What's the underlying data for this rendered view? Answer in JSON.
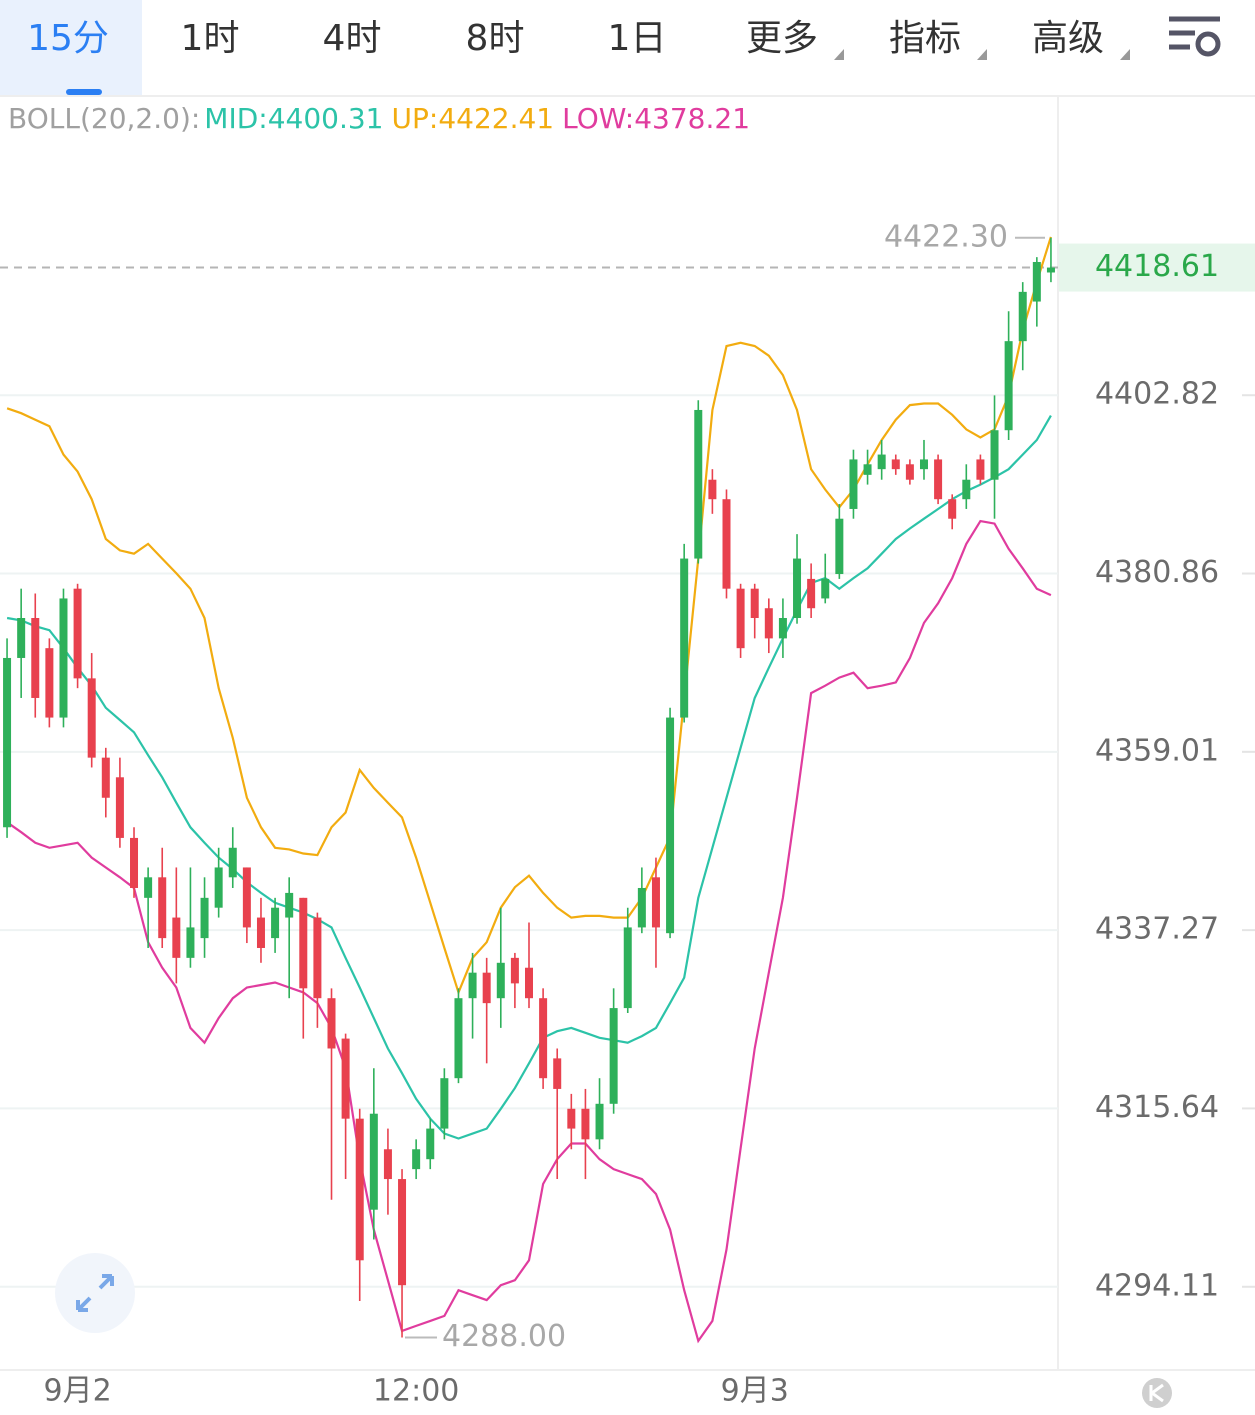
{
  "tabs": [
    "15分",
    "1时",
    "4时",
    "8时",
    "1日",
    "更多",
    "指标",
    "高级"
  ],
  "chart_data": {
    "type": "candlestick",
    "indicator": "BOLL(20,2.0):",
    "categories": [
      null,
      null,
      null,
      null,
      null,
      "9月2",
      null,
      null,
      null,
      null,
      null,
      null,
      null,
      null,
      null,
      null,
      null,
      null,
      null,
      null,
      null,
      null,
      null,
      null,
      null,
      null,
      null,
      null,
      null,
      "12:00",
      null,
      null,
      null,
      null,
      null,
      null,
      null,
      null,
      null,
      null,
      null,
      null,
      null,
      null,
      null,
      null,
      null,
      null,
      null,
      null,
      null,
      null,
      null,
      "9月3",
      null,
      null,
      null,
      null,
      null,
      null,
      null,
      null,
      null,
      null,
      null,
      null,
      null,
      null,
      null,
      null,
      null,
      null,
      null,
      null,
      null
    ],
    "ohlc": [
      [
        4349.8,
        4372.9,
        4348.5,
        4370.5
      ],
      [
        4370.5,
        4379.0,
        4365.6,
        4375.4
      ],
      [
        4375.4,
        4378.4,
        4363.2,
        4365.6
      ],
      [
        4371.7,
        4372.9,
        4362.0,
        4363.2
      ],
      [
        4363.2,
        4379.0,
        4362.0,
        4377.8
      ],
      [
        4379.0,
        4379.6,
        4366.8,
        4368.0
      ],
      [
        4368.0,
        4371.1,
        4357.1,
        4358.3
      ],
      [
        4358.3,
        4359.5,
        4351.0,
        4353.4
      ],
      [
        4355.9,
        4358.3,
        4347.3,
        4348.5
      ],
      [
        4348.5,
        4349.8,
        4341.2,
        4342.4
      ],
      [
        4341.2,
        4344.9,
        4335.1,
        4343.7
      ],
      [
        4343.7,
        4347.3,
        4335.1,
        4336.3
      ],
      [
        4338.8,
        4344.9,
        4330.8,
        4333.9
      ],
      [
        4333.9,
        4344.9,
        4332.7,
        4337.6
      ],
      [
        4336.3,
        4343.7,
        4333.9,
        4341.2
      ],
      [
        4340.0,
        4347.3,
        4338.8,
        4344.9
      ],
      [
        4343.7,
        4349.8,
        4342.4,
        4347.3
      ],
      [
        4344.9,
        4344.9,
        4335.7,
        4337.6
      ],
      [
        4338.8,
        4341.2,
        4333.3,
        4335.1
      ],
      [
        4336.3,
        4341.2,
        4334.5,
        4340.0
      ],
      [
        4338.8,
        4343.7,
        4329.0,
        4341.8
      ],
      [
        4341.2,
        4341.2,
        4324.1,
        4330.2
      ],
      [
        4338.8,
        4339.4,
        4325.4,
        4329.0
      ],
      [
        4329.0,
        4330.2,
        4304.6,
        4322.9
      ],
      [
        4324.1,
        4324.7,
        4307.1,
        4314.4
      ],
      [
        4314.4,
        4315.6,
        4292.4,
        4297.3
      ],
      [
        4303.4,
        4320.5,
        4299.8,
        4315.0
      ],
      [
        4310.7,
        4313.2,
        4302.8,
        4307.1
      ],
      [
        4307.1,
        4308.3,
        4288.0,
        4294.3
      ],
      [
        4308.3,
        4311.9,
        4307.1,
        4310.7
      ],
      [
        4309.5,
        4314.4,
        4308.3,
        4313.2
      ],
      [
        4313.2,
        4320.5,
        4311.9,
        4319.3
      ],
      [
        4319.3,
        4330.2,
        4318.7,
        4329.0
      ],
      [
        4329.0,
        4334.5,
        4324.1,
        4332.1
      ],
      [
        4332.1,
        4333.9,
        4321.1,
        4328.4
      ],
      [
        4329.0,
        4340.0,
        4325.4,
        4333.3
      ],
      [
        4333.9,
        4334.5,
        4327.8,
        4330.8
      ],
      [
        4332.7,
        4338.2,
        4327.8,
        4329.0
      ],
      [
        4329.0,
        4330.2,
        4318.0,
        4319.3
      ],
      [
        4321.7,
        4322.9,
        4307.1,
        4318.0
      ],
      [
        4315.6,
        4317.4,
        4310.7,
        4313.2
      ],
      [
        4315.6,
        4318.0,
        4307.1,
        4311.9
      ],
      [
        4311.9,
        4319.3,
        4310.7,
        4316.2
      ],
      [
        4316.2,
        4330.2,
        4315.0,
        4327.8
      ],
      [
        4327.8,
        4340.0,
        4327.2,
        4337.6
      ],
      [
        4337.6,
        4344.9,
        4336.9,
        4342.4
      ],
      [
        4343.7,
        4346.1,
        4332.7,
        4337.6
      ],
      [
        4336.9,
        4364.4,
        4336.3,
        4363.2
      ],
      [
        4363.2,
        4384.5,
        4362.6,
        4382.7
      ],
      [
        4382.7,
        4402.2,
        4382.1,
        4401.0
      ],
      [
        4392.4,
        4393.7,
        4388.2,
        4390.0
      ],
      [
        4390.0,
        4391.2,
        4377.8,
        4379.0
      ],
      [
        4379.0,
        4379.6,
        4370.5,
        4371.7
      ],
      [
        4379.0,
        4379.6,
        4372.9,
        4375.4
      ],
      [
        4376.6,
        4377.8,
        4371.1,
        4372.9
      ],
      [
        4372.9,
        4377.8,
        4370.5,
        4375.4
      ],
      [
        4375.4,
        4385.7,
        4374.7,
        4382.7
      ],
      [
        4380.2,
        4382.1,
        4375.4,
        4376.6
      ],
      [
        4377.8,
        4383.3,
        4377.2,
        4380.2
      ],
      [
        4380.8,
        4389.4,
        4380.2,
        4387.6
      ],
      [
        4388.8,
        4396.1,
        4387.6,
        4394.9
      ],
      [
        4393.0,
        4396.1,
        4391.8,
        4394.3
      ],
      [
        4393.7,
        4397.3,
        4392.4,
        4395.5
      ],
      [
        4394.9,
        4395.5,
        4393.0,
        4393.7
      ],
      [
        4394.3,
        4394.9,
        4391.8,
        4392.4
      ],
      [
        4393.7,
        4397.3,
        4392.4,
        4394.9
      ],
      [
        4394.9,
        4395.5,
        4389.4,
        4390.0
      ],
      [
        4390.0,
        4390.6,
        4386.3,
        4387.6
      ],
      [
        4390.0,
        4394.3,
        4388.8,
        4392.4
      ],
      [
        4394.9,
        4395.5,
        4391.8,
        4392.4
      ],
      [
        4392.4,
        4402.8,
        4387.6,
        4398.5
      ],
      [
        4398.5,
        4413.2,
        4397.3,
        4409.5
      ],
      [
        4409.5,
        4416.8,
        4405.9,
        4415.6
      ],
      [
        4414.4,
        4419.9,
        4411.3,
        4419.3
      ],
      [
        4418.0,
        4422.3,
        4416.8,
        4418.61
      ]
    ],
    "up_color": "#2eb05a",
    "down_color": "#e8414e",
    "series": [
      {
        "name": "MID:4400.31",
        "color": "#2cc3a8",
        "values": [
          4375.4,
          4375.1,
          4374.4,
          4373.9,
          4371.7,
          4369.3,
          4367.1,
          4364.4,
          4362.9,
          4361.4,
          4358.6,
          4355.9,
          4352.8,
          4349.8,
          4347.9,
          4346.1,
          4344.7,
          4343.1,
          4341.8,
          4340.6,
          4340.0,
          4339.4,
          4338.6,
          4337.6,
          4333.9,
          4330.3,
          4326.6,
          4322.9,
          4319.9,
          4316.8,
          4314.4,
          4312.6,
          4312.0,
          4312.6,
          4313.2,
          4315.6,
          4318.1,
          4321.1,
          4324.2,
          4325.0,
          4325.4,
          4324.8,
          4324.2,
          4323.9,
          4323.6,
          4324.4,
          4325.4,
          4328.4,
          4331.5,
          4341.2,
          4347.3,
          4353.4,
          4359.5,
          4365.6,
          4369.3,
          4372.9,
          4376.4,
          4379.7,
          4380.3,
          4379.0,
          4380.3,
          4381.5,
          4383.3,
          4385.1,
          4386.4,
          4387.6,
          4388.8,
          4390.0,
          4391.0,
          4391.8,
          4392.7,
          4393.7,
          4395.5,
          4397.3,
          4400.31
        ]
      },
      {
        "name": "UP:4422.41",
        "color": "#f2ac10",
        "values": [
          4401.2,
          4400.6,
          4399.8,
          4399.0,
          4395.5,
          4393.4,
          4390.0,
          4385.1,
          4383.7,
          4383.3,
          4384.5,
          4382.7,
          4380.9,
          4379.0,
          4375.4,
          4366.8,
          4360.7,
          4353.4,
          4349.8,
          4347.3,
          4347.1,
          4346.6,
          4346.4,
          4349.8,
          4351.6,
          4356.8,
          4354.6,
          4352.8,
          4351.0,
          4346.1,
          4340.6,
          4335.1,
          4329.7,
          4333.9,
          4335.8,
          4340.0,
          4342.5,
          4343.9,
          4341.8,
          4340.0,
          4338.8,
          4339.0,
          4339.0,
          4338.8,
          4338.8,
          4341.2,
          4344.9,
          4348.6,
          4365.6,
          4382.7,
          4401.0,
          4408.9,
          4409.3,
          4408.9,
          4407.7,
          4405.3,
          4401.0,
          4393.7,
          4391.2,
          4389.0,
          4391.2,
          4394.3,
          4397.3,
          4399.8,
          4401.6,
          4401.8,
          4401.8,
          4400.4,
          4398.6,
          4397.6,
          4398.6,
          4402.8,
          4410.8,
          4416.8,
          4422.41
        ]
      },
      {
        "name": "LOW:4378.21",
        "color": "#e03c9e",
        "values": [
          4350.4,
          4349.2,
          4347.9,
          4347.3,
          4347.6,
          4347.9,
          4346.1,
          4344.9,
          4343.7,
          4342.4,
          4335.8,
          4332.7,
          4330.3,
          4325.4,
          4323.6,
          4326.6,
          4329.0,
          4330.3,
          4330.6,
          4330.9,
          4330.3,
          4329.7,
          4328.4,
          4325.4,
          4320.5,
          4309.5,
          4301.0,
          4294.9,
          4288.8,
          4289.4,
          4290.0,
          4290.6,
          4293.7,
          4293.1,
          4292.5,
          4294.3,
          4294.9,
          4297.3,
          4306.5,
          4309.5,
          4311.4,
          4311.4,
          4309.5,
          4308.3,
          4307.7,
          4307.1,
          4305.3,
          4301.0,
          4293.7,
          4287.6,
          4290.0,
          4298.6,
          4310.8,
          4322.9,
          4332.1,
          4341.2,
          4353.4,
          4366.2,
          4367.1,
          4368.1,
          4368.7,
          4366.8,
          4367.1,
          4367.5,
          4370.5,
          4374.8,
          4377.2,
          4380.3,
          4384.5,
          4387.3,
          4387.0,
          4383.9,
          4381.5,
          4379.0,
          4378.21
        ]
      }
    ],
    "ylim": [
      4284.1,
      4433.2
    ],
    "yticks": [
      4402.82,
      4380.86,
      4359.01,
      4337.27,
      4315.64,
      4294.11
    ],
    "log": true,
    "grid": true,
    "last_price": 4418.61,
    "annotations": [
      {
        "value": 4422.3,
        "label": "4422.30"
      },
      {
        "value": 4288.0,
        "label": "4288.00"
      }
    ]
  }
}
